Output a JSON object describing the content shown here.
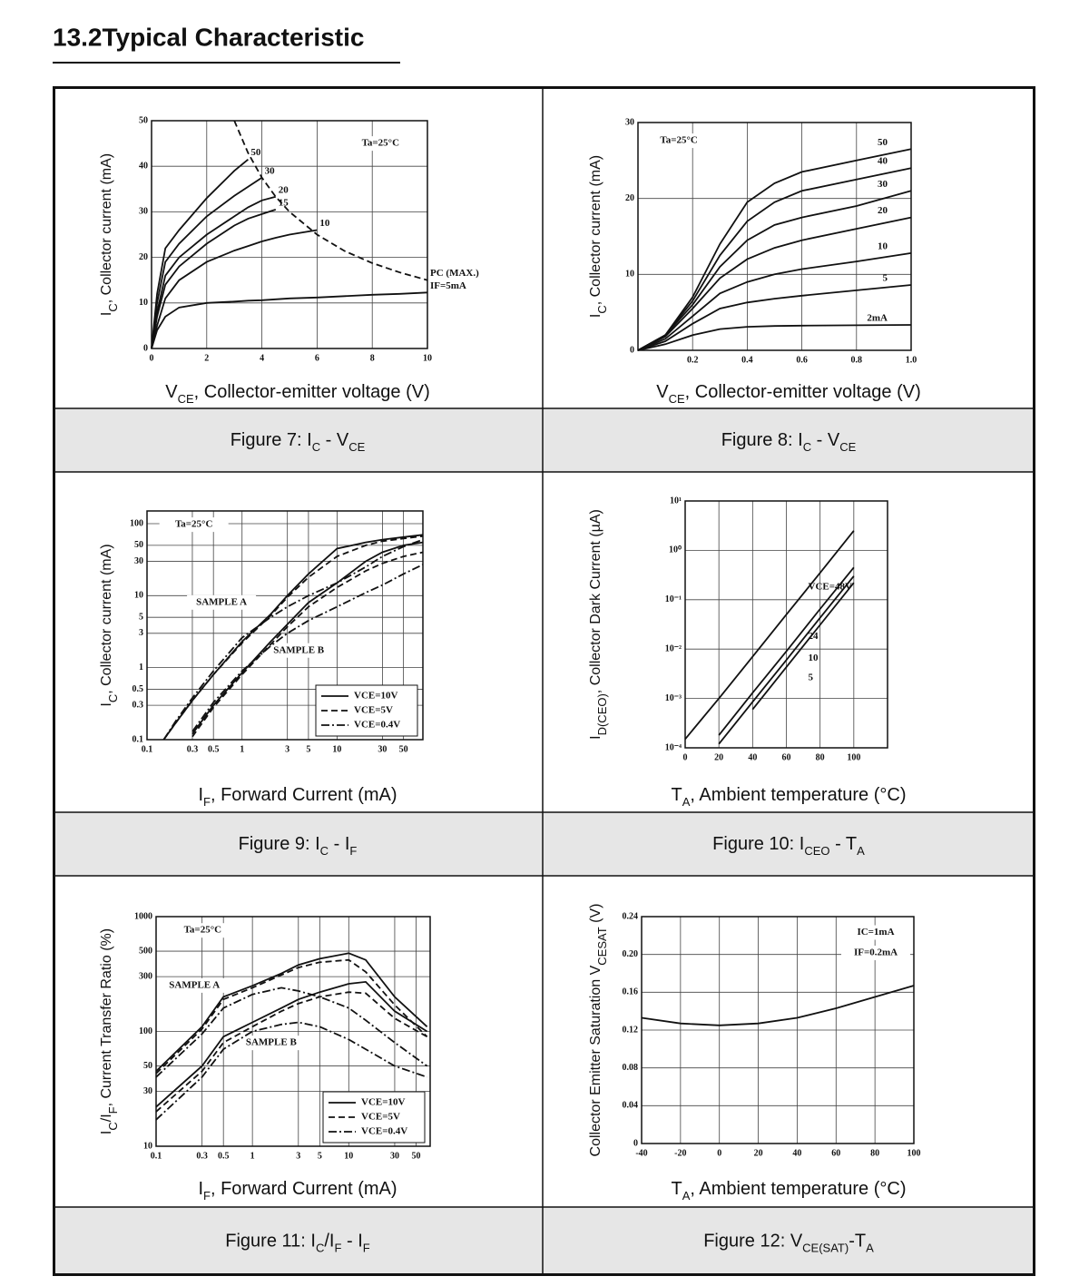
{
  "header": {
    "title": "13.2Typical Characteristic"
  },
  "chart_data": [
    {
      "type": "line",
      "caption": [
        "Figure 7: I",
        "C",
        " - V",
        "CE"
      ],
      "xlabel": [
        "V",
        "CE",
        ", Collector-emitter voltage (V)"
      ],
      "ylabel": [
        "I",
        "C",
        ", Collector current (mA)"
      ],
      "xlim": [
        0,
        10
      ],
      "ylim": [
        0,
        50
      ],
      "xticks": [
        0,
        2,
        4,
        6,
        8,
        10
      ],
      "yticks": [
        0,
        10,
        20,
        30,
        40,
        50
      ],
      "grid": true,
      "annotations": [
        "Ta=25°C"
      ],
      "x": [
        0,
        0.2,
        0.5,
        1,
        2,
        3,
        3.5,
        4,
        4.5,
        5,
        6,
        7,
        8,
        9,
        10
      ],
      "series": [
        {
          "name": "50",
          "color": "#111",
          "dash": "solid",
          "values": [
            0,
            12,
            22,
            26,
            33,
            39,
            41.5,
            null,
            null,
            null,
            null,
            null,
            null,
            null,
            null
          ]
        },
        {
          "name": "30",
          "color": "#111",
          "dash": "solid",
          "values": [
            0,
            10,
            19,
            23,
            29,
            33.5,
            35.5,
            37.5,
            null,
            null,
            null,
            null,
            null,
            null,
            null
          ]
        },
        {
          "name": "20",
          "color": "#111",
          "dash": "solid",
          "values": [
            0,
            8,
            16,
            20,
            25,
            29,
            31,
            32.5,
            33.3,
            null,
            null,
            null,
            null,
            null,
            null
          ]
        },
        {
          "name": "15",
          "color": "#111",
          "dash": "solid",
          "values": [
            0,
            7,
            14,
            18,
            23,
            27,
            28.5,
            29.5,
            30.5,
            null,
            null,
            null,
            null,
            null,
            null
          ]
        },
        {
          "name": "10",
          "color": "#111",
          "dash": "solid",
          "values": [
            0,
            5,
            11,
            15,
            19,
            21.5,
            22.5,
            23.5,
            24.3,
            25,
            26,
            null,
            null,
            null,
            null
          ]
        },
        {
          "name": "IF=5mA",
          "color": "#111",
          "dash": "solid",
          "values": [
            0,
            4,
            7,
            9,
            10,
            10.3,
            10.5,
            10.6,
            10.8,
            11,
            11.2,
            11.5,
            11.8,
            12,
            12.3
          ]
        },
        {
          "name": "PC (MAX.)",
          "color": "#111",
          "dash": "dashed",
          "values": [
            null,
            null,
            null,
            null,
            null,
            50,
            42.9,
            37.5,
            33.3,
            30,
            25,
            21.4,
            18.75,
            16.7,
            15
          ]
        }
      ]
    },
    {
      "type": "line",
      "caption": [
        "Figure 8: I",
        "C",
        " - V",
        "CE"
      ],
      "xlabel": [
        "V",
        "CE",
        ", Collector-emitter voltage (V)"
      ],
      "ylabel": [
        "I",
        "C",
        ", Collector current (mA)"
      ],
      "xlim": [
        0,
        1
      ],
      "ylim": [
        0,
        30
      ],
      "xticks": [
        0.2,
        0.4,
        0.6,
        0.8,
        {
          "value": 1,
          "label": "1.0"
        }
      ],
      "yticks": [
        0,
        10,
        20,
        30
      ],
      "grid": true,
      "annotations": [
        "Ta=25°C"
      ],
      "x": [
        0,
        0.1,
        0.2,
        0.3,
        0.4,
        0.5,
        0.6,
        0.8,
        1
      ],
      "series": [
        {
          "name": "50",
          "color": "#111",
          "dash": "solid",
          "values": [
            0,
            2,
            7,
            14,
            19.5,
            22,
            23.5,
            25,
            26.5
          ]
        },
        {
          "name": "40",
          "color": "#111",
          "dash": "solid",
          "values": [
            0,
            2,
            6.5,
            12.5,
            17,
            19.5,
            21,
            22.5,
            24
          ]
        },
        {
          "name": "30",
          "color": "#111",
          "dash": "solid",
          "values": [
            0,
            2,
            6,
            11,
            14.5,
            16.5,
            17.5,
            19,
            21
          ]
        },
        {
          "name": "20",
          "color": "#111",
          "dash": "solid",
          "values": [
            0,
            1.8,
            5.5,
            9.5,
            12,
            13.5,
            14.5,
            16,
            17.5
          ]
        },
        {
          "name": "10",
          "color": "#111",
          "dash": "solid",
          "values": [
            0,
            1.5,
            4.5,
            7.5,
            9,
            10,
            10.7,
            11.7,
            12.8
          ]
        },
        {
          "name": "5",
          "color": "#111",
          "dash": "solid",
          "values": [
            0,
            1.2,
            3.5,
            5.5,
            6.3,
            6.8,
            7.2,
            7.9,
            8.6
          ]
        },
        {
          "name": "2mA",
          "color": "#111",
          "dash": "solid",
          "values": [
            0,
            0.8,
            2,
            2.8,
            3.1,
            3.2,
            3.25,
            3.3,
            3.35
          ]
        }
      ]
    },
    {
      "type": "line",
      "caption": [
        "Figure 9: I",
        "C",
        " - I",
        "F"
      ],
      "xlabel": [
        "I",
        "F",
        ", Forward Current (mA)"
      ],
      "ylabel": [
        "I",
        "C",
        ", Collector current (mA)"
      ],
      "xscale": "log",
      "yscale": "log",
      "xlim": [
        0.1,
        80
      ],
      "ylim": [
        0.1,
        150
      ],
      "xticks": [
        0.1,
        0.3,
        0.5,
        1,
        3,
        5,
        10,
        30,
        50
      ],
      "yticks": [
        0.1,
        0.3,
        0.5,
        1,
        3,
        5,
        10,
        30,
        50,
        100
      ],
      "grid": true,
      "annotations": [
        "Ta=25°C",
        "SAMPLE A",
        "SAMPLE B"
      ],
      "legend": "lower right",
      "x": [
        0.15,
        0.2,
        0.3,
        0.5,
        1,
        2,
        3,
        5,
        10,
        20,
        30,
        50,
        80
      ],
      "series": [
        {
          "name": "VCE=10V",
          "color": "#111",
          "dash": "solid",
          "curves": [
            {
              "values": [
                0.1,
                0.17,
                0.35,
                0.8,
                2.3,
                5.5,
                10,
                20,
                45,
                55,
                60,
                65,
                70
              ]
            },
            {
              "values": [
                null,
                null,
                0.12,
                0.3,
                0.85,
                2.3,
                4,
                8,
                15,
                30,
                40,
                50,
                55
              ]
            }
          ]
        },
        {
          "name": "VCE=5V",
          "color": "#111",
          "dash": "dashed",
          "curves": [
            {
              "values": [
                0.1,
                0.17,
                0.35,
                0.8,
                2.2,
                5.3,
                9.5,
                18,
                35,
                50,
                57,
                62,
                67
              ]
            },
            {
              "values": [
                null,
                null,
                0.11,
                0.28,
                0.8,
                2.1,
                3.7,
                7,
                13,
                22,
                28,
                35,
                40
              ]
            }
          ]
        },
        {
          "name": "VCE=0.4V",
          "color": "#111",
          "dash": "dashdot",
          "curves": [
            {
              "values": [
                0.1,
                0.18,
                0.38,
                0.9,
                2.6,
                5,
                7,
                10,
                15,
                25,
                35,
                48,
                60
              ]
            },
            {
              "values": [
                null,
                null,
                0.13,
                0.33,
                0.9,
                2,
                3,
                4.5,
                7,
                11,
                14,
                20,
                27
              ]
            }
          ]
        }
      ]
    },
    {
      "type": "line",
      "caption": [
        "Figure 10: I",
        "CEO",
        " - T",
        "A"
      ],
      "xlabel": [
        "T",
        "A",
        ", Ambient temperature (°C)"
      ],
      "ylabel": [
        "I",
        "D(CEO)",
        ", Collector Dark Current (µA)"
      ],
      "yscale": "log",
      "xlim": [
        0,
        120
      ],
      "ylim": [
        0.0001,
        10
      ],
      "xticks": [
        0,
        20,
        40,
        60,
        80,
        100
      ],
      "yticks": [
        {
          "value": 0.0001,
          "label": "10⁻⁴"
        },
        {
          "value": 0.001,
          "label": "10⁻³"
        },
        {
          "value": 0.01,
          "label": "10⁻²"
        },
        {
          "value": 0.1,
          "label": "10⁻¹"
        },
        {
          "value": 1,
          "label": "10⁰"
        },
        {
          "value": 10,
          "label": "10¹"
        }
      ],
      "grid": true,
      "x": [
        0,
        20,
        40,
        60,
        80,
        100
      ],
      "series": [
        {
          "name": "VCE=48V",
          "color": "#111",
          "dash": "solid",
          "values": [
            0.00015,
            0.001,
            0.007,
            0.05,
            0.35,
            2.5
          ]
        },
        {
          "name": "24",
          "color": "#111",
          "dash": "solid",
          "values": [
            null,
            0.00018,
            0.0013,
            0.009,
            0.065,
            0.45
          ]
        },
        {
          "name": "10",
          "color": "#111",
          "dash": "solid",
          "values": [
            null,
            0.00012,
            0.00085,
            0.006,
            0.043,
            0.3
          ]
        },
        {
          "name": "5",
          "color": "#111",
          "dash": "solid",
          "values": [
            null,
            null,
            0.0006,
            0.0043,
            0.031,
            0.22
          ]
        }
      ]
    },
    {
      "type": "line",
      "caption": [
        "Figure 11: I",
        "C",
        "/I",
        "F",
        " - I",
        "F"
      ],
      "xlabel": [
        "I",
        "F",
        ", Forward Current (mA)"
      ],
      "ylabel": [
        "I",
        "C",
        "/I",
        "F",
        ", Current Transfer Ratio (%)"
      ],
      "xscale": "log",
      "yscale": "log",
      "xlim": [
        0.1,
        70
      ],
      "ylim": [
        10,
        1000
      ],
      "xticks": [
        0.1,
        0.3,
        0.5,
        1,
        3,
        5,
        10,
        30,
        50
      ],
      "yticks": [
        10,
        30,
        50,
        100,
        300,
        500,
        1000
      ],
      "grid": true,
      "annotations": [
        "Ta=25°C",
        "SAMPLE A",
        "SAMPLE B"
      ],
      "legend": "lower right",
      "x": [
        0.1,
        0.3,
        0.5,
        1,
        2,
        3,
        5,
        10,
        15,
        30,
        65
      ],
      "series": [
        {
          "name": "VCE=10V",
          "color": "#111",
          "dash": "solid",
          "curves": [
            {
              "values": [
                45,
                110,
                200,
                250,
                320,
                380,
                430,
                480,
                420,
                200,
                110
              ]
            },
            {
              "values": [
                22,
                50,
                90,
                120,
                160,
                190,
                220,
                260,
                270,
                150,
                100
              ]
            }
          ]
        },
        {
          "name": "VCE=5V",
          "color": "#111",
          "dash": "dashed",
          "curves": [
            {
              "values": [
                43,
                105,
                190,
                240,
                310,
                360,
                400,
                420,
                330,
                170,
                90
              ]
            },
            {
              "values": [
                20,
                45,
                80,
                110,
                150,
                175,
                200,
                220,
                215,
                130,
                90
              ]
            }
          ]
        },
        {
          "name": "VCE=0.4V",
          "color": "#111",
          "dash": "dashdot",
          "curves": [
            {
              "values": [
                40,
                95,
                160,
                210,
                240,
                225,
                200,
                160,
                125,
                80,
                50
              ]
            },
            {
              "values": [
                17,
                40,
                70,
                100,
                115,
                120,
                110,
                85,
                70,
                50,
                40
              ]
            }
          ]
        }
      ]
    },
    {
      "type": "line",
      "caption": [
        "Figure 12: V",
        "CE(SAT)",
        "-T",
        "A"
      ],
      "xlabel": [
        "T",
        "A",
        ", Ambient temperature (°C)"
      ],
      "ylabel": [
        "Collector Emitter Saturation V",
        "CESAT",
        " (V)"
      ],
      "xlim": [
        -40,
        100
      ],
      "ylim": [
        0,
        0.24
      ],
      "xticks": [
        -40,
        -20,
        0,
        20,
        40,
        60,
        80,
        100
      ],
      "yticks": [
        0,
        0.04,
        0.08,
        0.12,
        0.16,
        {
          "value": 0.2,
          "label": "0.20"
        },
        0.24
      ],
      "grid": true,
      "annotations": [
        "IC=1mA",
        "IF=0.2mA"
      ],
      "x": [
        -40,
        -20,
        0,
        20,
        40,
        60,
        80,
        100
      ],
      "series": [
        {
          "name": "VCE(SAT)",
          "color": "#111",
          "dash": "solid",
          "hidden_name": true,
          "values": [
            0.133,
            0.127,
            0.125,
            0.127,
            0.133,
            0.143,
            0.155,
            0.167
          ]
        }
      ]
    }
  ]
}
